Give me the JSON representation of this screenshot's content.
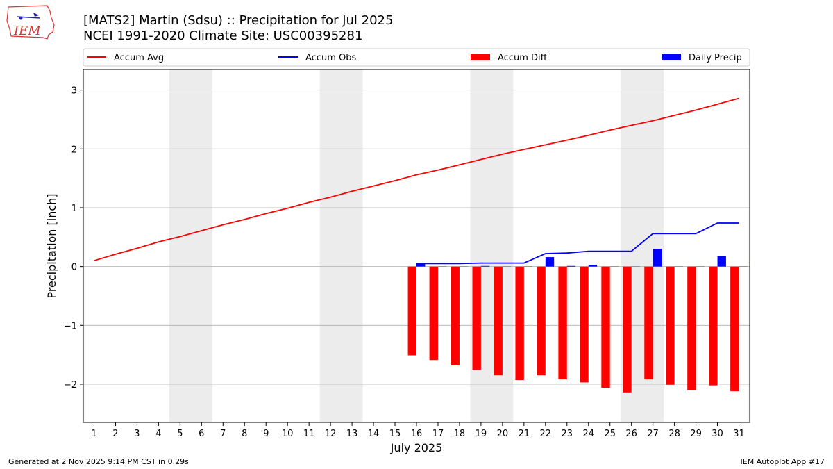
{
  "title_line1": "[MATS2] Martin (Sdsu) :: Precipitation for Jul 2025",
  "title_line2": "NCEI 1991-2020 Climate Site: USC00395281",
  "logo_text": "IEM",
  "footer_left": "Generated at 2 Nov 2025 9:14 PM CST in 0.29s",
  "footer_right": "IEM Autoplot App #17",
  "colors": {
    "accum_avg": "#ff0000",
    "accum_obs": "#0000ff",
    "accum_diff": "#ff0000",
    "daily_precip": "#0000ff",
    "weekend_shade": "#ececec",
    "grid": "#b0b0b0"
  },
  "chart_data": {
    "type": "bar",
    "xlabel": "July 2025",
    "ylabel": "Precipitation [inch]",
    "xlim": [
      0.5,
      31.5
    ],
    "ylim": [
      -2.65,
      3.35
    ],
    "x_ticks": [
      1,
      2,
      3,
      4,
      5,
      6,
      7,
      8,
      9,
      10,
      11,
      12,
      13,
      14,
      15,
      16,
      17,
      18,
      19,
      20,
      21,
      22,
      23,
      24,
      25,
      26,
      27,
      28,
      29,
      30,
      31
    ],
    "y_ticks": [
      {
        "value": 3,
        "label": "3"
      },
      {
        "value": 2,
        "label": "2"
      },
      {
        "value": 1,
        "label": "1"
      },
      {
        "value": 0,
        "label": "0"
      },
      {
        "value": -1,
        "label": "−1"
      },
      {
        "value": -2,
        "label": "−2"
      }
    ],
    "grid": "horizontal",
    "legend_position": "top",
    "weekend_shading": [
      [
        4.5,
        6.5
      ],
      [
        11.5,
        13.5
      ],
      [
        18.5,
        20.5
      ],
      [
        25.5,
        27.5
      ]
    ],
    "series": [
      {
        "name": "Accum Avg",
        "kind": "line",
        "x": [
          1,
          2,
          3,
          4,
          5,
          6,
          7,
          8,
          9,
          10,
          11,
          12,
          13,
          14,
          15,
          16,
          17,
          18,
          19,
          20,
          21,
          22,
          23,
          24,
          25,
          26,
          27,
          28,
          29,
          30,
          31
        ],
        "values": [
          0.1,
          0.21,
          0.31,
          0.42,
          0.51,
          0.61,
          0.71,
          0.8,
          0.9,
          0.99,
          1.09,
          1.18,
          1.28,
          1.37,
          1.46,
          1.56,
          1.64,
          1.73,
          1.82,
          1.91,
          1.99,
          2.07,
          2.15,
          2.23,
          2.32,
          2.4,
          2.48,
          2.57,
          2.66,
          2.76,
          2.86
        ]
      },
      {
        "name": "Accum Obs",
        "kind": "line",
        "x": [
          16,
          17,
          18,
          19,
          20,
          21,
          22,
          23,
          24,
          25,
          26,
          27,
          28,
          29,
          30,
          31
        ],
        "values": [
          0.05,
          0.05,
          0.05,
          0.06,
          0.06,
          0.06,
          0.22,
          0.23,
          0.26,
          0.26,
          0.26,
          0.56,
          0.56,
          0.56,
          0.74,
          0.74
        ]
      },
      {
        "name": "Accum Diff",
        "kind": "bar",
        "x": [
          16,
          17,
          18,
          19,
          20,
          21,
          22,
          23,
          24,
          25,
          26,
          27,
          28,
          29,
          30,
          31
        ],
        "values": [
          -1.51,
          -1.59,
          -1.68,
          -1.76,
          -1.85,
          -1.93,
          -1.85,
          -1.92,
          -1.97,
          -2.06,
          -2.14,
          -1.92,
          -2.01,
          -2.1,
          -2.02,
          -2.12
        ]
      },
      {
        "name": "Daily Precip",
        "kind": "bar",
        "x": [
          16,
          17,
          18,
          19,
          20,
          21,
          22,
          23,
          24,
          25,
          26,
          27,
          28,
          29,
          30,
          31
        ],
        "values": [
          0.05,
          0.0,
          0.0,
          0.01,
          0.0,
          0.0,
          0.16,
          0.01,
          0.03,
          0.0,
          0.0,
          0.3,
          0.0,
          0.0,
          0.18,
          0.0
        ]
      }
    ]
  }
}
